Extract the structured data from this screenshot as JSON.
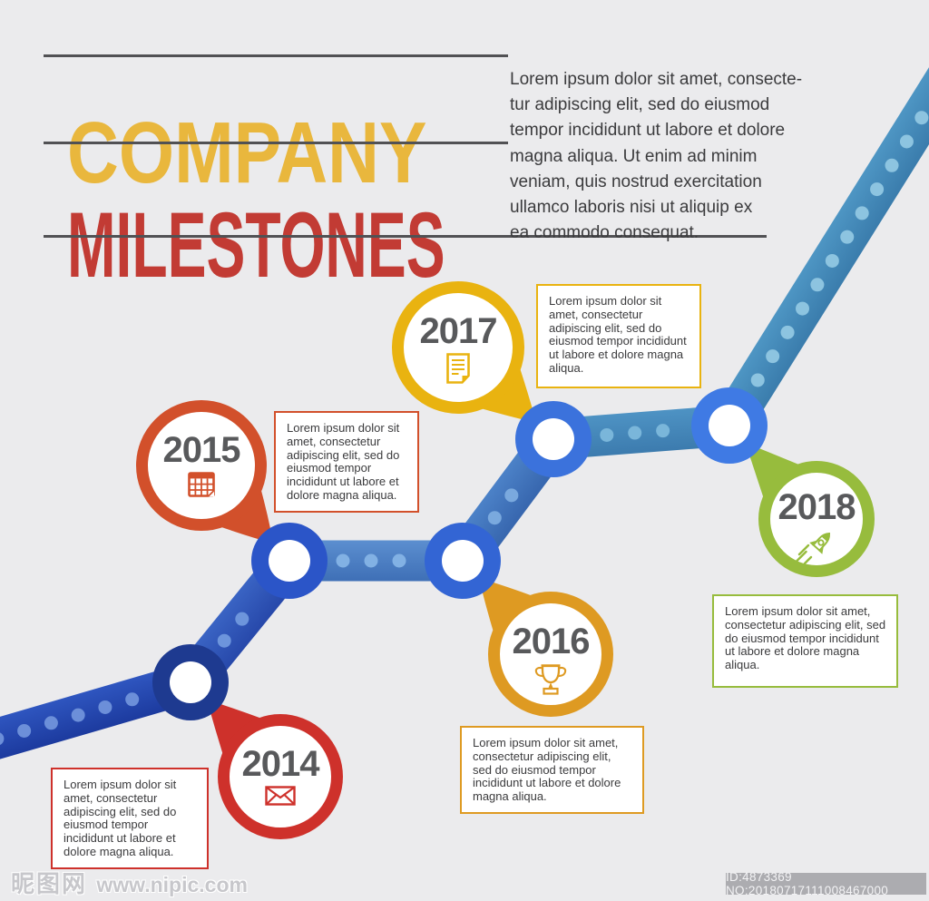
{
  "title": {
    "line1": "COMPANY",
    "line2": "MILESTONES"
  },
  "intro": "Lorem ipsum dolor sit amet, consecte-\ntur adipiscing elit, sed do eiusmod\ntempor incididunt ut labore et dolore\nmagna aliqua. Ut enim ad minim\nveniam, quis nostrud exercitation\nullamco laboris nisi ut aliquip ex\nea commodo consequat.",
  "milestones": [
    {
      "year": "2014",
      "icon": "envelope-icon",
      "color": "#CE312B",
      "text": "Lorem ipsum dolor sit\namet, consectetur\nadipiscing elit, sed do\neiusmod tempor\nincididunt ut labore et\ndolore magna aliqua."
    },
    {
      "year": "2015",
      "icon": "calendar-icon",
      "color": "#D2502B",
      "text": "Lorem ipsum dolor sit\namet, consectetur\nadipiscing elit, sed do\neiusmod tempor\nincididunt ut labore et\ndolore magna aliqua."
    },
    {
      "year": "2016",
      "icon": "trophy-icon",
      "color": "#DE9A22",
      "text": "Lorem ipsum dolor sit amet,\nconsectetur adipiscing elit,\nsed do eiusmod tempor\nincididunt ut labore et dolore\nmagna aliqua."
    },
    {
      "year": "2017",
      "icon": "document-icon",
      "color": "#E9B310",
      "text": "Lorem ipsum dolor sit\namet, consectetur\nadipiscing elit, sed do\neiusmod tempor incididunt\nut labore et dolore magna\naliqua."
    },
    {
      "year": "2018",
      "icon": "rocket-icon",
      "color": "#97BC3D",
      "text": "Lorem ipsum dolor sit amet,\nconsectetur adipiscing elit, sed\ndo eiusmod tempor incididunt\nut labore et dolore magna\naliqua."
    }
  ],
  "road": {
    "segment_gradients": [
      [
        "#2F56C0",
        "#1C3A9E"
      ],
      [
        "#3A64C4",
        "#2748AA"
      ],
      [
        "#5C8FD0",
        "#3E6FB6"
      ],
      [
        "#4C82C8",
        "#3766AE"
      ],
      [
        "#4E93C4",
        "#3C7BAE"
      ],
      [
        "#4E96C4",
        "#3A7CAC"
      ]
    ],
    "dot_colors": [
      "#6C8FD9",
      "#6D95DC",
      "#82B1E4",
      "#7AA9DE",
      "#7AB6DA",
      "#8DC4E0"
    ],
    "node_ring_colors": [
      "#1E3A90",
      "#2B55C8",
      "#3365D4",
      "#3B72DC",
      "#3F7AE4"
    ],
    "node_fill": "#FFFFFF"
  },
  "colors": {
    "background": "#EBEBED",
    "title_line1": "#E9B73D",
    "title_line2": "#C23B34",
    "divider": "#515154",
    "year_text": "#58595B",
    "body_text": "#3B3B3D"
  },
  "watermark": {
    "site_logo": "昵图网",
    "site_url": "www.nipic.com",
    "id_text": "ID:4873369 NO:20180717111008467000"
  }
}
